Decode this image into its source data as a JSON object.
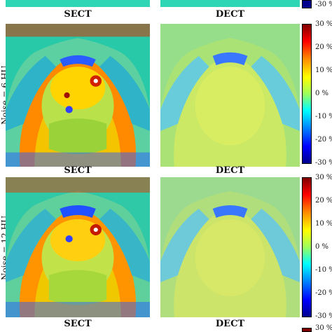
{
  "columns": {
    "sect": "SECT",
    "dect": "DECT"
  },
  "rows": [
    {
      "label": "Noise = 6 HU"
    },
    {
      "label": "Noise = 12 HU"
    }
  ],
  "colorbar": {
    "ticks": [
      "30 %",
      "20 %",
      "10 %",
      "0 %",
      "-10 %",
      "-20 %",
      "-30 %"
    ],
    "top_partial_tick": "-30 %",
    "bottom_partial_tick": "30 %",
    "colormap": "jet",
    "colors": {
      "max": "#7f0000",
      "mid": "#9cff5c",
      "min": "#00008f"
    }
  }
}
